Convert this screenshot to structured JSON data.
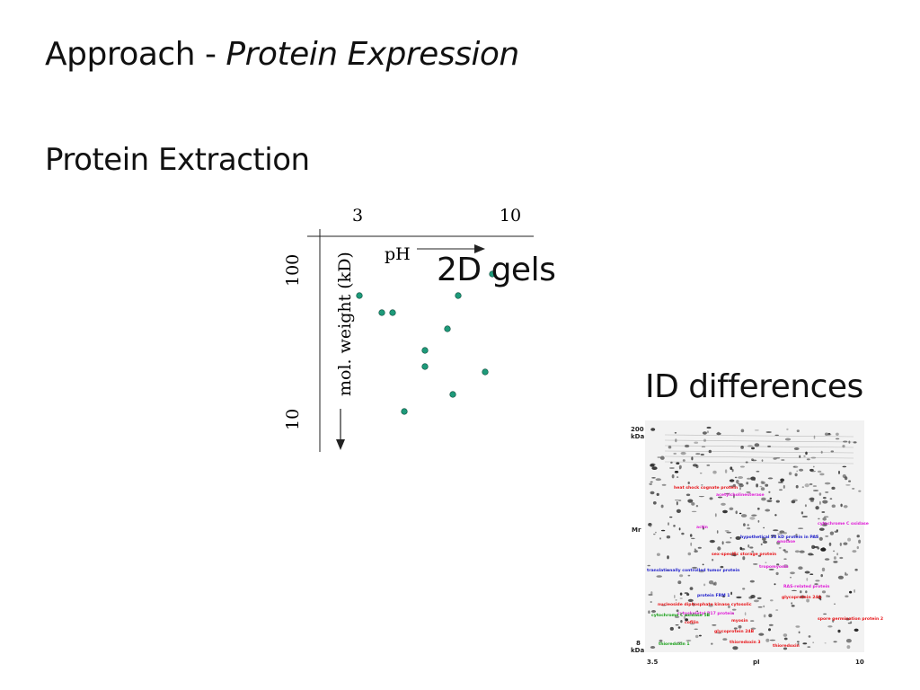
{
  "slide": {
    "title_main": "Approach - ",
    "title_italic": "Protein Expression",
    "subtitle": "Protein Extraction",
    "gels_label": "2D gels",
    "id_label": "ID differences"
  },
  "diagram": {
    "ph_low": "3",
    "ph_high": "10",
    "ph_label": "pH",
    "mw_label": "mol. weight (kD)",
    "mw_high": "100",
    "mw_low": "10",
    "spot_color": "#1e9a7a"
  },
  "gel_image": {
    "mr_top": "200",
    "mr_unit_top": "kDa",
    "mr_label": "Mr",
    "mr_bottom": "8",
    "mr_unit_bottom": "kDa",
    "pi_low": "3.5",
    "pi_label": "pI",
    "pi_high": "10",
    "annotations_red": [
      "heat shock cognate protein",
      "sex-specific storage protein",
      "thioredoxin 3",
      "thioredoxin",
      "glycoprotein 24B",
      "glycoprotein 24A",
      "spore germination protein 2",
      "nucleoside diphosphate kinase cytosolic",
      "myosin",
      "cofilin"
    ],
    "annotations_magenta": [
      "acetylcholinesterase",
      "actin",
      "enolase",
      "tropomyosin",
      "RAS-related protein",
      "cytochrome C oxidase",
      "cytoskeletal P17 protein"
    ],
    "annotations_blue": [
      "hypothetical 22 kD protein in PAS",
      "translationally controlled tumor protein",
      "protein FRM 1"
    ],
    "annotations_green": [
      "cytochrome C oxidase 5B",
      "thioredoxin 1"
    ]
  }
}
